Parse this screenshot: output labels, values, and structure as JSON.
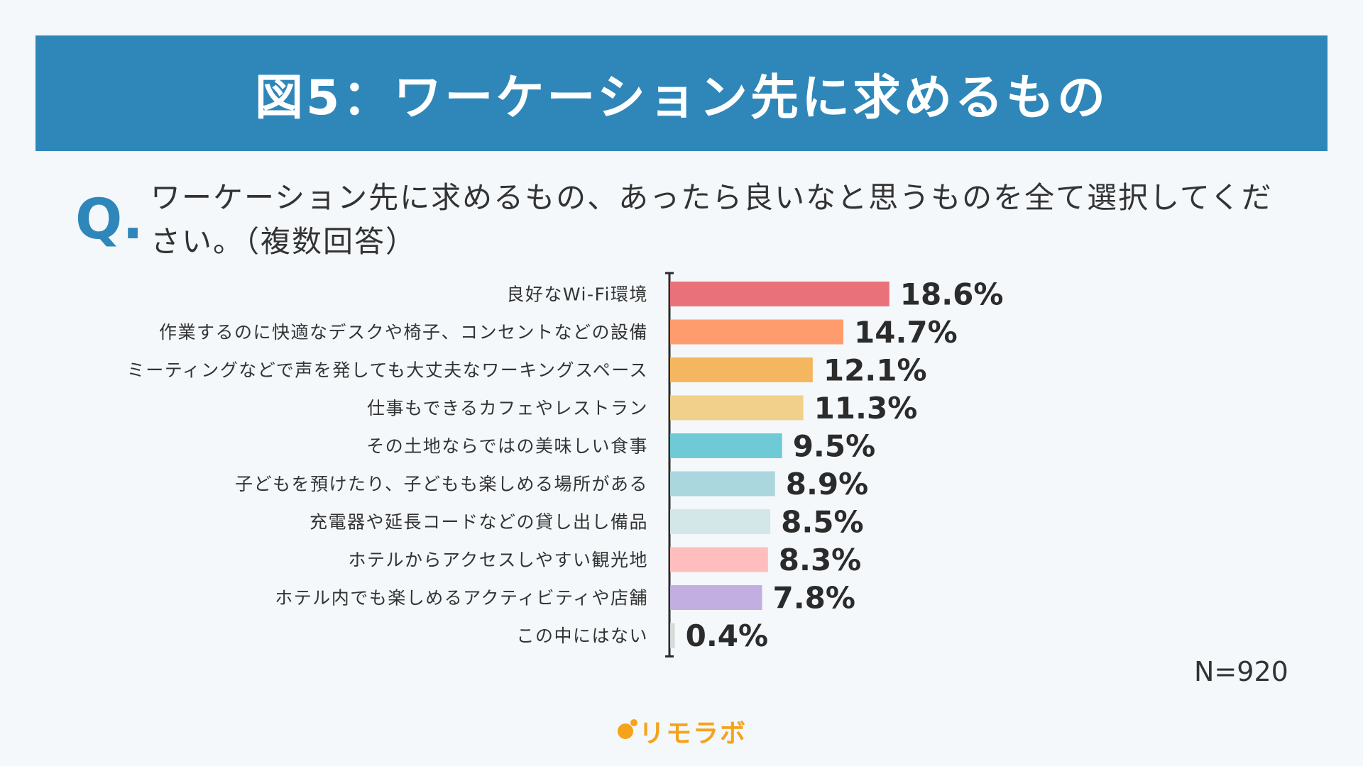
{
  "header": {
    "title": "図5：ワーケーション先に求めるもの"
  },
  "question": {
    "mark": "Q.",
    "text": "ワーケーション先に求めるもの、あったら良いなと思うものを全て選択してください。（複数回答）"
  },
  "sample_size": "N=920",
  "logo": {
    "text": "リモラボ",
    "color": "#f4a31a"
  },
  "chart_data": {
    "type": "bar",
    "orientation": "horizontal",
    "title": "",
    "xlabel": "",
    "ylabel": "",
    "xlim": [
      0,
      20
    ],
    "categories": [
      "良好なWi-Fi環境",
      "作業するのに快適なデスクや椅子、コンセントなどの設備",
      "ミーティングなどで声を発しても大丈夫なワーキングスペース",
      "仕事もできるカフェやレストラン",
      "その土地ならではの美味しい食事",
      "子どもを預けたり、子どもも楽しめる場所がある",
      "充電器や延長コードなどの貸し出し備品",
      "ホテルからアクセスしやすい観光地",
      "ホテル内でも楽しめるアクティビティや店舗",
      "この中にはない"
    ],
    "values": [
      18.6,
      14.7,
      12.1,
      11.3,
      9.5,
      8.9,
      8.5,
      8.3,
      7.8,
      0.4
    ],
    "value_labels": [
      "18.6%",
      "14.7%",
      "12.1%",
      "11.3%",
      "9.5%",
      "8.9%",
      "8.5%",
      "8.3%",
      "7.8%",
      "0.4%"
    ],
    "colors": [
      "#e8717a",
      "#ff9c6e",
      "#f4b65e",
      "#f0d08a",
      "#6ecbd6",
      "#a9d7dd",
      "#d3e6e8",
      "#ffbdbd",
      "#c3aee2",
      "#d9d9d9"
    ],
    "grid": false,
    "legend": "none"
  }
}
